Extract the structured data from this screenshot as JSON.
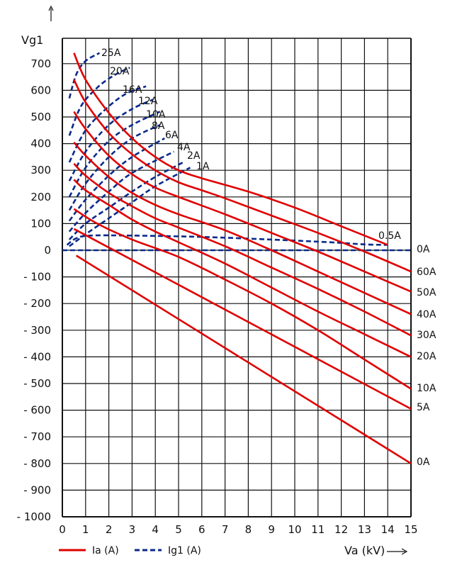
{
  "chart_data": {
    "type": "line",
    "ylabel": "Vg1",
    "xlabel": "Va (kV)",
    "xlim": [
      0,
      15
    ],
    "ylim": [
      -1000,
      750
    ],
    "xticks": [
      "0",
      "1",
      "2",
      "3",
      "4",
      "5",
      "6",
      "7",
      "8",
      "9",
      "10",
      "11",
      "12",
      "13",
      "14",
      "15"
    ],
    "yticks": [
      {
        "value": 700,
        "label": "700"
      },
      {
        "value": 600,
        "label": "600"
      },
      {
        "value": 500,
        "label": "500"
      },
      {
        "value": 400,
        "label": "400"
      },
      {
        "value": 300,
        "label": "300"
      },
      {
        "value": 200,
        "label": "200"
      },
      {
        "value": 100,
        "label": "100"
      },
      {
        "value": 0,
        "label": "0"
      },
      {
        "value": -100,
        "label": "- 100"
      },
      {
        "value": -200,
        "label": "- 200"
      },
      {
        "value": -300,
        "label": "- 300"
      },
      {
        "value": -400,
        "label": "- 400"
      },
      {
        "value": -500,
        "label": "- 500"
      },
      {
        "value": -600,
        "label": "- 600"
      },
      {
        "value": -700,
        "label": "- 700"
      },
      {
        "value": -800,
        "label": "- 800"
      },
      {
        "value": -900,
        "label": "- 900"
      },
      {
        "value": -1000,
        "label": "- 1000"
      }
    ],
    "grid": true,
    "legend": {
      "placement": "bottom-left",
      "items": [
        {
          "label": "Ia (A)",
          "style": "solid",
          "color": "#e00000"
        },
        {
          "label": "Ig1 (A)",
          "style": "dashed",
          "color": "#0a2a8a"
        }
      ]
    },
    "anode_current_series": [
      {
        "name": "0A",
        "points": [
          [
            0.6,
            -20
          ],
          [
            15,
            -800
          ]
        ]
      },
      {
        "name": "5A",
        "points": [
          [
            0.5,
            80
          ],
          [
            15,
            -595
          ]
        ]
      },
      {
        "name": "10A",
        "points": [
          [
            0.5,
            155
          ],
          [
            1.5,
            100
          ],
          [
            3,
            40
          ],
          [
            5,
            -25
          ],
          [
            7,
            -110
          ],
          [
            9,
            -200
          ],
          [
            11,
            -300
          ],
          [
            13,
            -410
          ],
          [
            15,
            -520
          ]
        ]
      },
      {
        "name": "20A",
        "points": [
          [
            0.5,
            265
          ],
          [
            1,
            225
          ],
          [
            2,
            170
          ],
          [
            3,
            115
          ],
          [
            4,
            70
          ],
          [
            5,
            30
          ],
          [
            7,
            -50
          ],
          [
            9,
            -140
          ],
          [
            11,
            -230
          ],
          [
            13,
            -315
          ],
          [
            15,
            -400
          ]
        ]
      },
      {
        "name": "30A",
        "points": [
          [
            0.5,
            325
          ],
          [
            1,
            280
          ],
          [
            2,
            215
          ],
          [
            3,
            165
          ],
          [
            4,
            120
          ],
          [
            5,
            85
          ],
          [
            7,
            15
          ],
          [
            9,
            -65
          ],
          [
            11,
            -145
          ],
          [
            13,
            -230
          ],
          [
            15,
            -320
          ]
        ]
      },
      {
        "name": "40A",
        "points": [
          [
            0.5,
            405
          ],
          [
            1,
            355
          ],
          [
            2,
            275
          ],
          [
            3,
            215
          ],
          [
            4,
            170
          ],
          [
            5,
            135
          ],
          [
            7,
            75
          ],
          [
            9,
            0
          ],
          [
            11,
            -80
          ],
          [
            13,
            -160
          ],
          [
            15,
            -240
          ]
        ]
      },
      {
        "name": "50A",
        "points": [
          [
            0.5,
            520
          ],
          [
            1,
            455
          ],
          [
            2,
            355
          ],
          [
            3,
            285
          ],
          [
            4,
            235
          ],
          [
            5,
            200
          ],
          [
            7,
            135
          ],
          [
            9,
            65
          ],
          [
            11,
            -5
          ],
          [
            13,
            -80
          ],
          [
            15,
            -155
          ]
        ]
      },
      {
        "name": "60A",
        "points": [
          [
            0.5,
            640
          ],
          [
            1,
            555
          ],
          [
            2,
            440
          ],
          [
            3,
            360
          ],
          [
            4,
            300
          ],
          [
            5,
            255
          ],
          [
            6,
            225
          ],
          [
            7,
            195
          ],
          [
            9,
            130
          ],
          [
            11,
            65
          ],
          [
            13,
            -5
          ],
          [
            15,
            -80
          ]
        ]
      },
      {
        "name": "",
        "points": [
          [
            0.5,
            740
          ],
          [
            1,
            640
          ],
          [
            2,
            515
          ],
          [
            3,
            420
          ],
          [
            4,
            350
          ],
          [
            5,
            300
          ],
          [
            6,
            270
          ],
          [
            8,
            220
          ],
          [
            10,
            160
          ],
          [
            12,
            90
          ],
          [
            13,
            55
          ],
          [
            14,
            20
          ]
        ]
      }
    ],
    "grid_current_series": [
      {
        "name": "25A",
        "points": [
          [
            0.3,
            570
          ],
          [
            0.6,
            660
          ],
          [
            1,
            710
          ],
          [
            1.6,
            740
          ]
        ]
      },
      {
        "name": "20A",
        "points": [
          [
            0.3,
            430
          ],
          [
            0.8,
            540
          ],
          [
            1.5,
            610
          ],
          [
            2.2,
            655
          ],
          [
            2.9,
            685
          ]
        ]
      },
      {
        "name": "16A",
        "points": [
          [
            0.3,
            330
          ],
          [
            1,
            450
          ],
          [
            2,
            540
          ],
          [
            2.8,
            590
          ],
          [
            3.6,
            615
          ]
        ]
      },
      {
        "name": "12A",
        "points": [
          [
            0.3,
            260
          ],
          [
            1,
            370
          ],
          [
            2,
            470
          ],
          [
            3,
            530
          ],
          [
            3.9,
            565
          ]
        ]
      },
      {
        "name": "10A",
        "points": [
          [
            0.3,
            200
          ],
          [
            1,
            310
          ],
          [
            2,
            410
          ],
          [
            3,
            470
          ],
          [
            4.2,
            520
          ]
        ]
      },
      {
        "name": "8A",
        "points": [
          [
            0.3,
            150
          ],
          [
            1,
            250
          ],
          [
            2,
            350
          ],
          [
            3,
            420
          ],
          [
            4.2,
            470
          ]
        ]
      },
      {
        "name": "6A",
        "points": [
          [
            0.3,
            110
          ],
          [
            1,
            190
          ],
          [
            2,
            280
          ],
          [
            3,
            350
          ],
          [
            4.4,
            420
          ]
        ]
      },
      {
        "name": "4A",
        "points": [
          [
            0.3,
            70
          ],
          [
            1,
            140
          ],
          [
            2,
            220
          ],
          [
            3,
            290
          ],
          [
            4.8,
            370
          ]
        ]
      },
      {
        "name": "2A",
        "points": [
          [
            0.3,
            40
          ],
          [
            1,
            100
          ],
          [
            2,
            160
          ],
          [
            3,
            220
          ],
          [
            4,
            275
          ],
          [
            5.2,
            330
          ]
        ]
      },
      {
        "name": "1A",
        "points": [
          [
            0.3,
            15
          ],
          [
            1,
            60
          ],
          [
            2,
            120
          ],
          [
            3,
            180
          ],
          [
            4,
            240
          ],
          [
            5.5,
            310
          ]
        ]
      },
      {
        "name": "0.5A",
        "points": [
          [
            0.2,
            20
          ],
          [
            0.6,
            45
          ],
          [
            1.2,
            55
          ],
          [
            3,
            55
          ],
          [
            6,
            50
          ],
          [
            9,
            40
          ],
          [
            11.5,
            30
          ],
          [
            13,
            22
          ],
          [
            14,
            20
          ]
        ]
      },
      {
        "name": "0A",
        "points": [
          [
            0,
            0
          ],
          [
            15,
            0
          ]
        ]
      }
    ],
    "right_labels": [
      "0A",
      "60A",
      "50A",
      "40A",
      "30A",
      "20A",
      "10A",
      "5A",
      "0A"
    ],
    "top_labels": [
      "25A",
      "20A",
      "16A",
      "12A",
      "10A",
      "8A",
      "6A",
      "4A",
      "2A",
      "1A",
      "0.5A"
    ]
  }
}
